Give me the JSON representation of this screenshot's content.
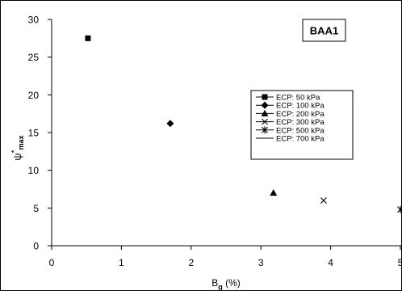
{
  "chart_data": {
    "type": "scatter",
    "title": "BAA1",
    "xlabel": {
      "main": "B",
      "sub": "g",
      "suffix": " (%)"
    },
    "ylabel": {
      "main": "ψ",
      "sup": "*",
      "sub": "max"
    },
    "xlim": [
      0,
      5
    ],
    "ylim": [
      0,
      30
    ],
    "xticks": [
      "0",
      "1",
      "2",
      "3",
      "4",
      "5"
    ],
    "yticks": [
      "0",
      "5",
      "10",
      "15",
      "20",
      "25",
      "30"
    ],
    "legend_position": "right",
    "series": [
      {
        "name": "ECP: 50 kPa",
        "marker": "square",
        "points": [
          [
            0.52,
            27.5
          ]
        ]
      },
      {
        "name": "ECP: 100 kPa",
        "marker": "diamond",
        "points": [
          [
            1.7,
            16.2
          ]
        ]
      },
      {
        "name": "ECP: 200 kPa",
        "marker": "triangle",
        "points": [
          [
            3.18,
            7.0
          ]
        ]
      },
      {
        "name": "ECP: 300 kPa",
        "marker": "x",
        "points": [
          [
            3.9,
            6.0
          ]
        ]
      },
      {
        "name": "ECP: 500 kPa",
        "marker": "star",
        "points": [
          [
            5.0,
            4.8
          ]
        ]
      },
      {
        "name": "ECP: 700 kPa",
        "marker": "dash",
        "points": []
      }
    ]
  }
}
